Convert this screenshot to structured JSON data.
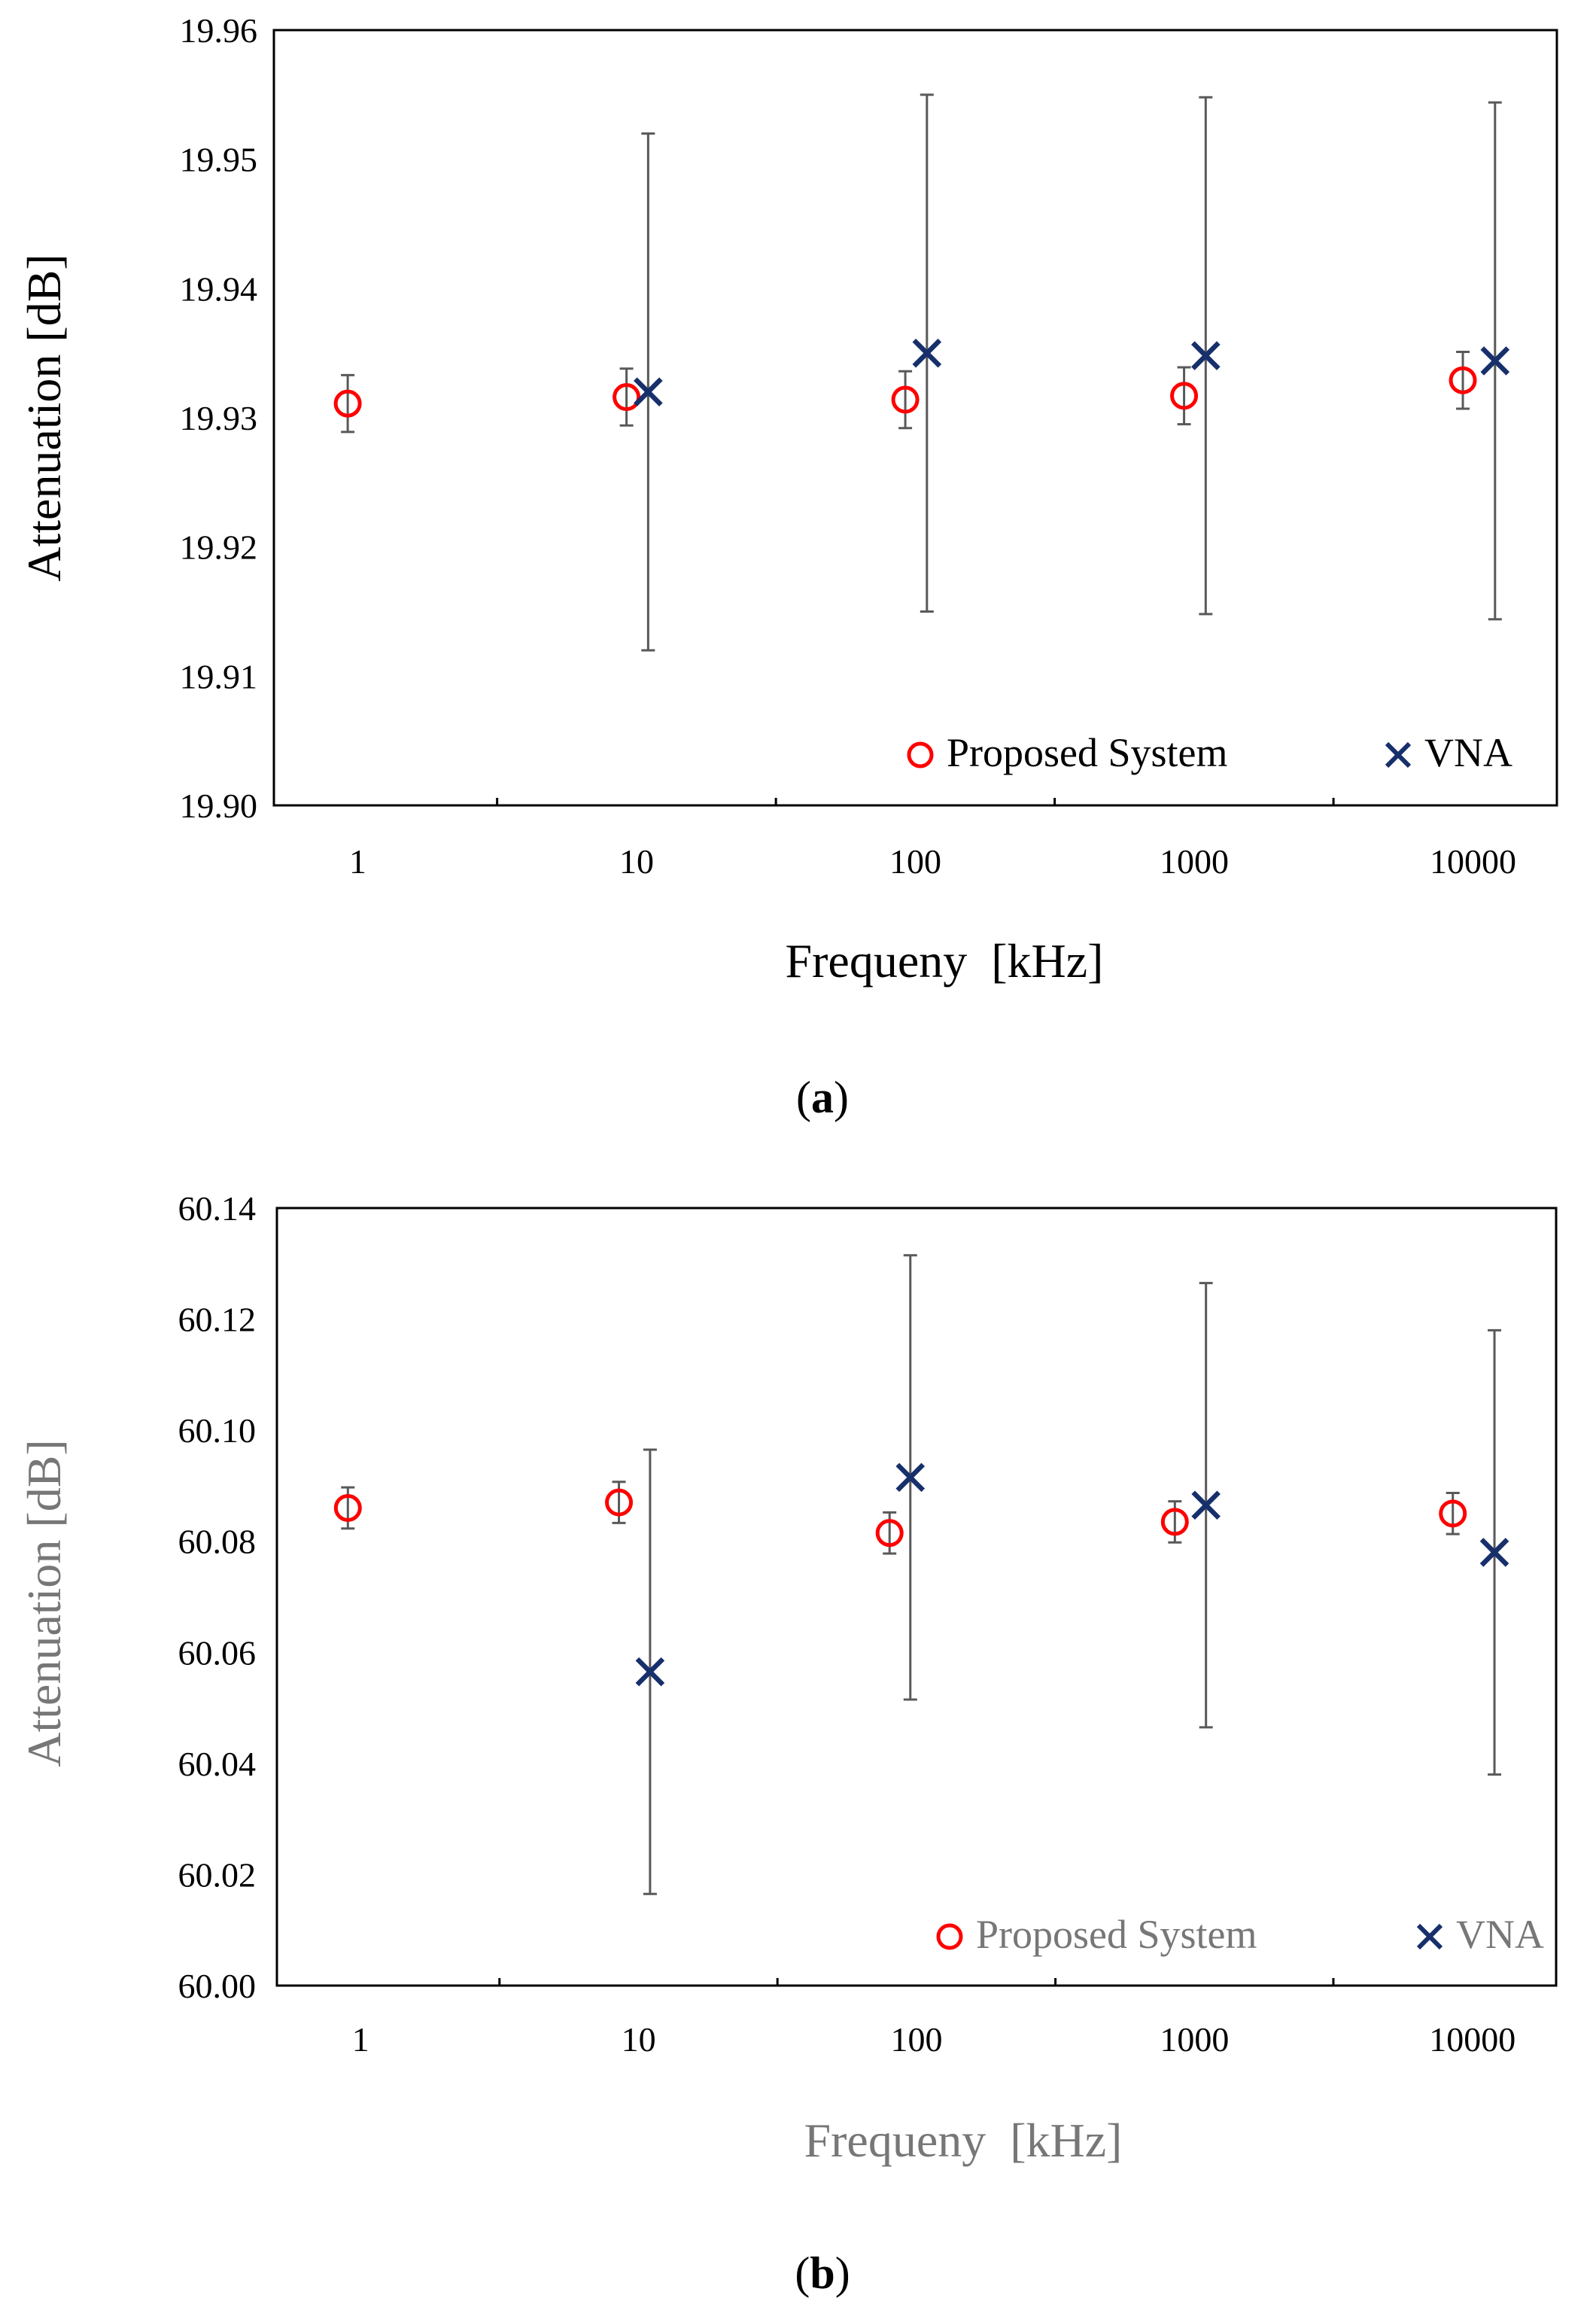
{
  "chart_data": [
    {
      "type": "scatter",
      "panel_label": "a",
      "title": "",
      "xlabel": "Frequeny  [kHz]",
      "ylabel": "Attenuation [dB]",
      "xscale": "log",
      "xlim": [
        0.5,
        20000
      ],
      "ylim": [
        19.9,
        19.96
      ],
      "x_ticks": [
        "1",
        "10",
        "100",
        "1000",
        "10000"
      ],
      "y_ticks": [
        "19.90",
        "19.91",
        "19.92",
        "19.93",
        "19.94",
        "19.95",
        "19.96"
      ],
      "legend_position": "bottom-right",
      "series": [
        {
          "name": "Proposed System",
          "marker": "circle",
          "color": "#ff0000",
          "x": [
            0.92,
            9.2,
            92,
            920,
            9200
          ],
          "y": [
            19.9311,
            19.9316,
            19.9314,
            19.9317,
            19.9329
          ],
          "err": [
            0.0022,
            0.0022,
            0.0022,
            0.0022,
            0.0022
          ]
        },
        {
          "name": "VNA",
          "marker": "x",
          "color": "#17306b",
          "x": [
            11,
            110,
            1100,
            12000
          ],
          "y": [
            19.932,
            19.935,
            19.9348,
            19.9344
          ],
          "err": [
            0.02,
            0.02,
            0.02,
            0.02
          ]
        }
      ]
    },
    {
      "type": "scatter",
      "panel_label": "b",
      "title": "",
      "xlabel": "Frequeny  [kHz]",
      "ylabel": "Attenuation [dB]",
      "xscale": "log",
      "xlim": [
        0.5,
        20000
      ],
      "ylim": [
        60.0,
        60.14
      ],
      "x_ticks": [
        "1",
        "10",
        "100",
        "1000",
        "10000"
      ],
      "y_ticks": [
        "60.00",
        "60.02",
        "60.04",
        "60.06",
        "60.08",
        "60.10",
        "60.12",
        "60.14"
      ],
      "legend_position": "bottom-right",
      "series": [
        {
          "name": "Proposed System",
          "marker": "circle",
          "color": "#ff0000",
          "x": [
            0.9,
            8.5,
            80,
            850,
            8500
          ],
          "y": [
            60.086,
            60.087,
            60.0815,
            60.0835,
            60.085
          ],
          "err": [
            0.0037,
            0.0037,
            0.0037,
            0.0037,
            0.0037
          ]
        },
        {
          "name": "VNA",
          "marker": "x",
          "color": "#17306b",
          "x": [
            11,
            95,
            1100,
            12000
          ],
          "y": [
            60.0565,
            60.0915,
            60.0865,
            60.078
          ],
          "err": [
            0.04,
            0.04,
            0.04,
            0.04
          ]
        }
      ]
    }
  ],
  "colors": {
    "proposed": "#ff0000",
    "vna": "#17306b",
    "errorbar": "#595959",
    "axis": "#000000"
  }
}
